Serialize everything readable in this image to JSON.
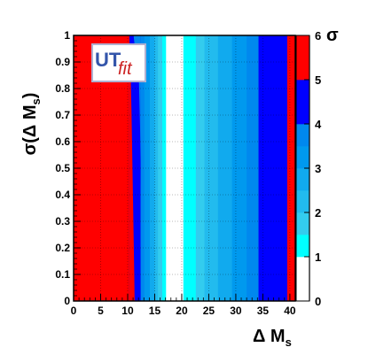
{
  "chart_data": {
    "type": "heatmap",
    "title": "",
    "xlabel": {
      "main": "Δ M",
      "sub": "s"
    },
    "ylabel": {
      "main": "σ(Δ M",
      "sub": "s",
      "close": ")"
    },
    "xlim": [
      0,
      41
    ],
    "ylim": [
      0,
      1
    ],
    "x_ticks": [
      {
        "value": 0,
        "label": "0"
      },
      {
        "value": 5,
        "label": "5"
      },
      {
        "value": 10,
        "label": "10"
      },
      {
        "value": 15,
        "label": "15"
      },
      {
        "value": 20,
        "label": "20"
      },
      {
        "value": 25,
        "label": "25"
      },
      {
        "value": 30,
        "label": "30"
      },
      {
        "value": 35,
        "label": "35"
      },
      {
        "value": 40,
        "label": "40"
      }
    ],
    "y_ticks": [
      {
        "value": 0,
        "label": "0"
      },
      {
        "value": 0.1,
        "label": "0.1"
      },
      {
        "value": 0.2,
        "label": "0.2"
      },
      {
        "value": 0.3,
        "label": "0.3"
      },
      {
        "value": 0.4,
        "label": "0.4"
      },
      {
        "value": 0.5,
        "label": "0.5"
      },
      {
        "value": 0.6,
        "label": "0.6"
      },
      {
        "value": 0.7,
        "label": "0.7"
      },
      {
        "value": 0.8,
        "label": "0.8"
      },
      {
        "value": 0.9,
        "label": "0.9"
      },
      {
        "value": 1,
        "label": "1"
      }
    ],
    "colorbar": {
      "title": "σ",
      "range": [
        0,
        6
      ],
      "ticks": [
        {
          "value": 0,
          "label": "0"
        },
        {
          "value": 1,
          "label": "1"
        },
        {
          "value": 2,
          "label": "2"
        },
        {
          "value": 3,
          "label": "3"
        },
        {
          "value": 4,
          "label": "4"
        },
        {
          "value": 5,
          "label": "5"
        },
        {
          "value": 6,
          "label": "6"
        }
      ],
      "levels": [
        {
          "from": 0,
          "to": 1,
          "color": "#ffffff"
        },
        {
          "from": 1,
          "to": 1.5,
          "color": "#00ffff"
        },
        {
          "from": 1.5,
          "to": 2,
          "color": "#33ccee"
        },
        {
          "from": 2,
          "to": 2.5,
          "color": "#22bbee"
        },
        {
          "from": 2.5,
          "to": 3,
          "color": "#11aaee"
        },
        {
          "from": 3,
          "to": 3.5,
          "color": "#0099ee"
        },
        {
          "from": 3.5,
          "to": 4,
          "color": "#0088ee"
        },
        {
          "from": 4,
          "to": 5,
          "color": "#0000ff"
        },
        {
          "from": 5,
          "to": 6,
          "color": "#ff0000"
        }
      ]
    },
    "bands": [
      {
        "x0": 0,
        "x1": 10.3,
        "color": "#ff0000",
        "varies": false
      },
      {
        "x0": 10.3,
        "x1": 11.3,
        "color": "#0000ff",
        "varies": true,
        "alt_color": "#ff0000",
        "boundaries": [
          [
            0,
            11.3
          ],
          [
            0.37,
            11.0
          ],
          [
            0.72,
            10.7
          ],
          [
            0.9,
            10.5
          ],
          [
            1,
            10.3
          ]
        ]
      },
      {
        "x0": 11.3,
        "x1": 12.4,
        "color": "#0000ff",
        "varies": true,
        "alt_color": "#0088ee",
        "boundaries": [
          [
            0,
            12.4
          ],
          [
            0.36,
            12.5
          ],
          [
            0.65,
            12.3
          ],
          [
            0.82,
            12.1
          ],
          [
            0.9,
            11.6
          ],
          [
            1,
            11.1
          ]
        ]
      },
      {
        "x0": 12.4,
        "x1": 13.1,
        "color": "#0088ee",
        "varies": false
      },
      {
        "x0": 13.1,
        "x1": 14.1,
        "color": "#0099ee",
        "varies": false
      },
      {
        "x0": 14.1,
        "x1": 15.0,
        "color": "#11aaee",
        "varies": false
      },
      {
        "x0": 15.0,
        "x1": 15.6,
        "color": "#22bbee",
        "varies": false
      },
      {
        "x0": 15.6,
        "x1": 16.4,
        "color": "#33ccee",
        "varies": false
      },
      {
        "x0": 16.4,
        "x1": 17.1,
        "color": "#00ffff",
        "varies": false
      },
      {
        "x0": 17.1,
        "x1": 20.3,
        "color": "#ffffff",
        "varies": false
      },
      {
        "x0": 20.3,
        "x1": 22.6,
        "color": "#00ffff",
        "varies": false
      },
      {
        "x0": 22.6,
        "x1": 24.2,
        "color": "#33ccee",
        "varies": false
      },
      {
        "x0": 24.2,
        "x1": 26.7,
        "color": "#22bbee",
        "varies": false
      },
      {
        "x0": 26.7,
        "x1": 29.3,
        "color": "#11aaee",
        "varies": false
      },
      {
        "x0": 29.3,
        "x1": 32.0,
        "color": "#0099ee",
        "varies": false
      },
      {
        "x0": 32.0,
        "x1": 34.2,
        "color": "#0088ee",
        "varies": false
      },
      {
        "x0": 34.2,
        "x1": 38.0,
        "color": "#0000ff",
        "varies": false
      },
      {
        "x0": 38.0,
        "x1": 39.5,
        "color": "#0000ff",
        "varies": false
      },
      {
        "x0": 39.5,
        "x1": 41,
        "color": "#ff0000",
        "varies": false
      }
    ],
    "grid": true
  },
  "logo": {
    "text_main": "UT",
    "text_italic": "fit",
    "color_main": "#3355aa",
    "color_italic": "#cc2222"
  }
}
